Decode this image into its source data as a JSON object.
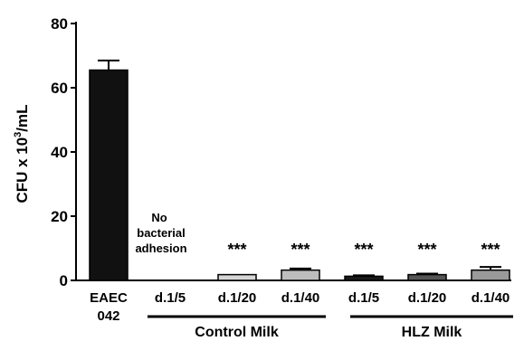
{
  "chart_data": {
    "type": "bar",
    "title": "",
    "xlabel": "",
    "ylabel": "CFU x 10^3/mL",
    "ylabel_parts": [
      "CFU x 10",
      "3",
      "/mL"
    ],
    "ylim": [
      0,
      80
    ],
    "yticks": [
      "0",
      "20",
      "40",
      "60",
      "80"
    ],
    "categories": [
      [
        "EAEC",
        "042"
      ],
      [
        "d.1/5"
      ],
      [
        "d.1/20"
      ],
      [
        "d.1/40"
      ],
      [
        "d.1/5"
      ],
      [
        "d.1/20"
      ],
      [
        "d.1/40"
      ]
    ],
    "values": [
      65.5,
      0,
      1.8,
      3.2,
      1.3,
      1.8,
      3.2
    ],
    "errors": [
      3,
      0,
      0,
      0.5,
      0.3,
      0.3,
      1.0
    ],
    "bar_colors": [
      "#111111",
      "#ffffff",
      "#d6d6d6",
      "#bdbdbd",
      "#1a1a1a",
      "#555555",
      "#9a9a9a"
    ],
    "significance": [
      "",
      "",
      "***",
      "***",
      "***",
      "***",
      "***"
    ],
    "annotations": [
      {
        "category_index": 1,
        "lines": [
          "No",
          "bacterial",
          "adhesion"
        ]
      }
    ],
    "groups": [
      {
        "label": "Control Milk",
        "from": 1,
        "to": 3
      },
      {
        "label": "HLZ Milk",
        "from": 4,
        "to": 6
      }
    ],
    "grid": false,
    "legend": "none"
  }
}
